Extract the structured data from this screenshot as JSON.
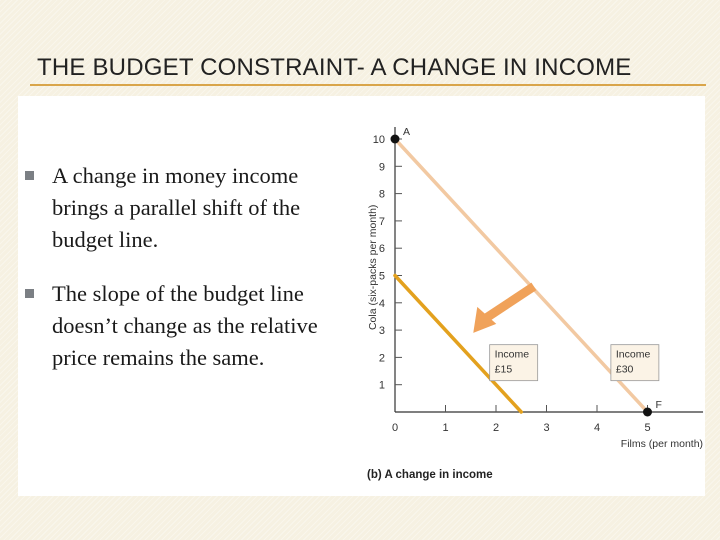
{
  "slide": {
    "title": "THE BUDGET CONSTRAINT- A CHANGE IN INCOME",
    "bullets": [
      "A change in money income brings a parallel shift of the budget line.",
      "The slope of the budget line doesn’t change as the relative price remains the same."
    ]
  },
  "colors": {
    "background": "#f6f1e2",
    "accent_rule": "#d9a54a",
    "line_original": "#f2c9a2",
    "line_new": "#e3a11e",
    "arrow": "#f0a25a",
    "bullet_marker": "#7b7f84"
  },
  "chart_data": {
    "type": "line",
    "caption": "(b) A change in income",
    "xlabel": "Films (per month)",
    "ylabel": "Cola (six-packs per month)",
    "xlim": [
      0,
      6
    ],
    "ylim": [
      0,
      10
    ],
    "x_ticks": [
      0,
      1,
      2,
      3,
      4,
      5
    ],
    "y_ticks": [
      1,
      2,
      3,
      4,
      5,
      6,
      7,
      8,
      9,
      10
    ],
    "series": [
      {
        "label_lines": [
          "Income",
          "£30"
        ],
        "points": [
          [
            0,
            10
          ],
          [
            5,
            0
          ]
        ]
      },
      {
        "label_lines": [
          "Income",
          "£15"
        ],
        "points": [
          [
            0,
            5
          ],
          [
            2.5,
            0
          ]
        ]
      }
    ],
    "points_labeled": [
      {
        "label": "A",
        "x": 0,
        "y": 10
      },
      {
        "label": "F",
        "x": 5,
        "y": 0
      }
    ],
    "annotation": "arrow showing leftward parallel shift of the budget line"
  }
}
